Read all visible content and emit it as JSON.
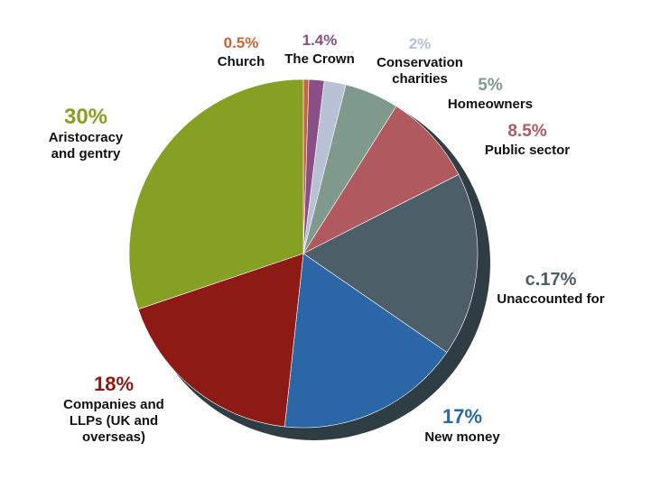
{
  "chart_data": {
    "type": "pie",
    "title": "",
    "start_angle_deg": 0,
    "direction": "clockwise",
    "colors": {
      "rim_shadow": "#2f3d45",
      "label_text": "#111111"
    },
    "slices": [
      {
        "id": "church",
        "pct_label": "0.5%",
        "label_lines": [
          "Church"
        ],
        "value": 0.5,
        "color": "#c8643a",
        "pct_color": "#c8643a"
      },
      {
        "id": "the-crown",
        "pct_label": "1.4%",
        "label_lines": [
          "The Crown"
        ],
        "value": 1.4,
        "color": "#8a4f86",
        "pct_color": "#8a4f86"
      },
      {
        "id": "conservation-charities",
        "pct_label": "2%",
        "label_lines": [
          "Conservation",
          "charities"
        ],
        "value": 2,
        "color": "#b7c1d3",
        "pct_color": "#b7c1d3"
      },
      {
        "id": "homeowners",
        "pct_label": "5%",
        "label_lines": [
          "Homeowners"
        ],
        "value": 5,
        "color": "#7f9a8c",
        "pct_color": "#7f9a8c"
      },
      {
        "id": "public-sector",
        "pct_label": "8.5%",
        "label_lines": [
          "Public sector"
        ],
        "value": 8.5,
        "color": "#b05a5e",
        "pct_color": "#b05a5e"
      },
      {
        "id": "unaccounted-for",
        "pct_label": "c.17%",
        "label_lines": [
          "Unaccounted for"
        ],
        "value": 17,
        "color": "#4d5e68",
        "pct_color": "#4d5e68"
      },
      {
        "id": "new-money",
        "pct_label": "17%",
        "label_lines": [
          "New money"
        ],
        "value": 17,
        "color": "#2b67a6",
        "pct_color": "#2b67a6"
      },
      {
        "id": "companies-and-llps",
        "pct_label": "18%",
        "label_lines": [
          "Companies and",
          "LLPs (UK and",
          "overseas)"
        ],
        "value": 18,
        "color": "#8d1a14",
        "pct_color": "#8d1a14"
      },
      {
        "id": "aristocracy-and-gentry",
        "pct_label": "30%",
        "label_lines": [
          "Aristocracy",
          "and gentry"
        ],
        "value": 30,
        "color": "#86a023",
        "pct_color": "#86a023"
      }
    ]
  }
}
